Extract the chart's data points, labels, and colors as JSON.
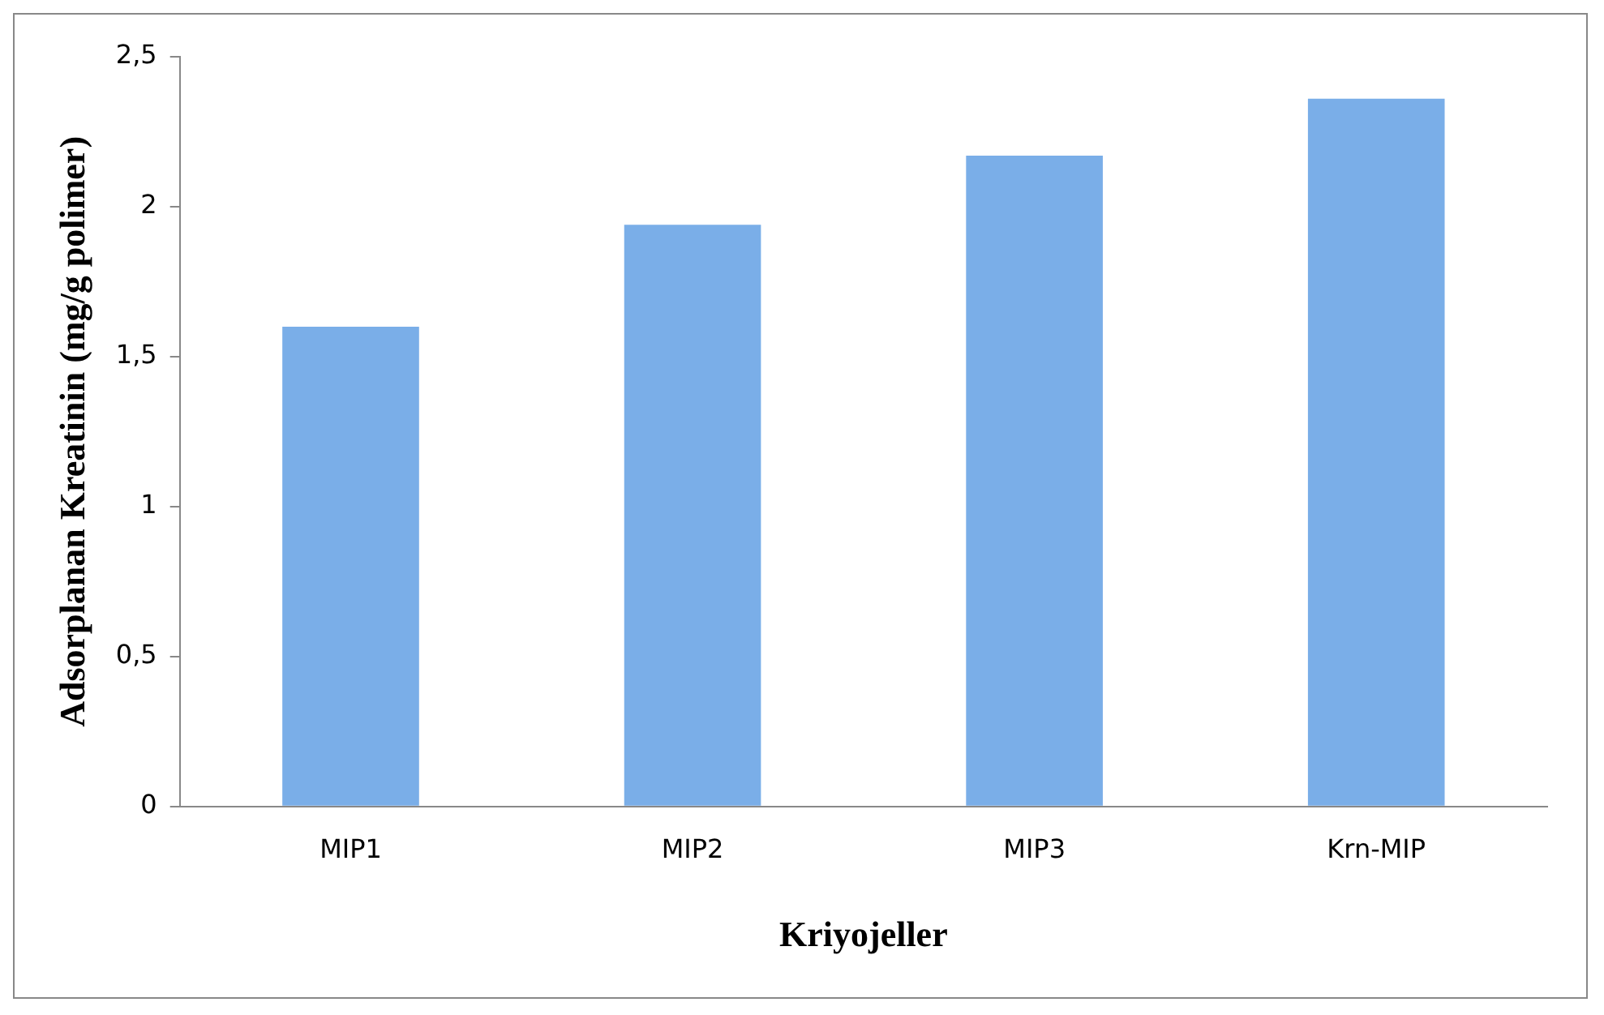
{
  "chart_data": {
    "type": "bar",
    "xlabel": "Kriyojeller",
    "ylabel": "Adsorplanan Kreatinin (mg/g polimer)",
    "categories": [
      "MIP1",
      "MIP2",
      "MIP3",
      "Krn-MIP"
    ],
    "values": [
      1.6,
      1.94,
      2.17,
      2.36
    ],
    "color": "#7aaee8",
    "ylim": [
      0,
      2.5
    ],
    "yticks": [
      0,
      {
        "value": 0.5,
        "label": "0,5"
      },
      1,
      {
        "value": 1.5,
        "label": "1,5"
      },
      2,
      {
        "value": 2.5,
        "label": "2,5"
      }
    ],
    "grid": false,
    "legend": false
  }
}
